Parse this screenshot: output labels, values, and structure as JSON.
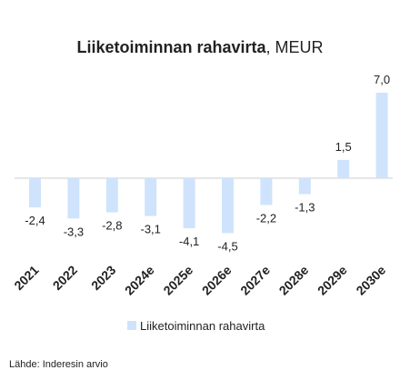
{
  "chart_data": {
    "type": "bar",
    "title_bold": "Liiketoiminnan rahavirta",
    "title_suffix": ", MEUR",
    "categories": [
      "2021",
      "2022",
      "2023",
      "2024e",
      "2025e",
      "2026e",
      "2027e",
      "2028e",
      "2029e",
      "2030e"
    ],
    "series": [
      {
        "name": "Liiketoiminnan rahavirta",
        "values": [
          -2.4,
          -3.3,
          -2.8,
          -3.1,
          -4.1,
          -4.5,
          -2.2,
          -1.3,
          1.5,
          7.0
        ],
        "labels": [
          "-2,4",
          "-3,3",
          "-2,8",
          "-3,1",
          "-4,1",
          "-4,5",
          "-2,2",
          "-1,3",
          "1,5",
          "7,0"
        ],
        "color": "#cfe3fc"
      }
    ],
    "grid": false,
    "legend_position": "bottom"
  },
  "source": "Lähde: Inderesin arvio",
  "colors": {
    "text": "#222222",
    "baseline": "#cccccc",
    "bar": "#cfe3fc"
  }
}
